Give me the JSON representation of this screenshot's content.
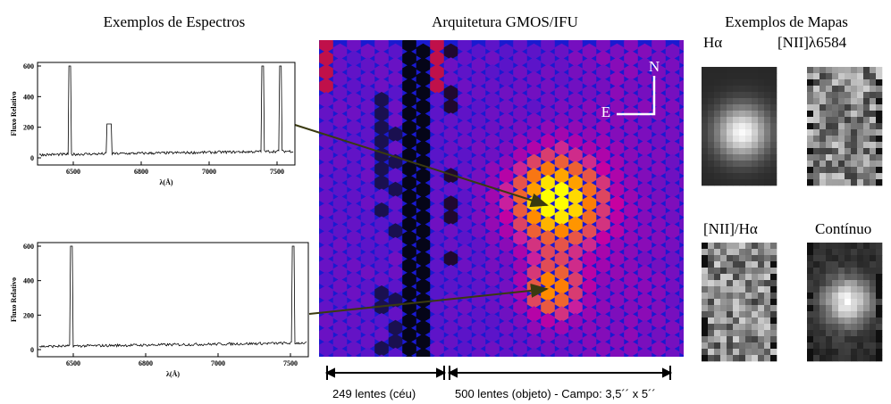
{
  "titles": {
    "spectra": "Exemplos de Espectros",
    "architecture": "Arquitetura GMOS/IFU",
    "maps": "Exemplos de Mapas"
  },
  "spectra": [
    {
      "y_label": "Fluxo Relativo",
      "x_label": "λ(Å)",
      "yticks": [
        "0",
        "200",
        "400",
        "600"
      ],
      "xticks": [
        "6500",
        "6800",
        "7000",
        "7500"
      ]
    },
    {
      "y_label": "Fluxo Relativo",
      "x_label": "λ(Å)",
      "yticks": [
        "0",
        "200",
        "400",
        "600"
      ],
      "xticks": [
        "6500",
        "6800",
        "7000",
        "7500"
      ]
    }
  ],
  "compass": {
    "north": "N",
    "east": "E"
  },
  "maps": [
    {
      "label": "Hα"
    },
    {
      "label": "[NII]λ6584"
    },
    {
      "label": "[NII]/Hα"
    },
    {
      "label": "Contínuo"
    }
  ],
  "lenses": {
    "sky": "249 lentes (céu)",
    "object": "500 lentes (objeto) - Campo: 3,5´´ x 5´´"
  }
}
